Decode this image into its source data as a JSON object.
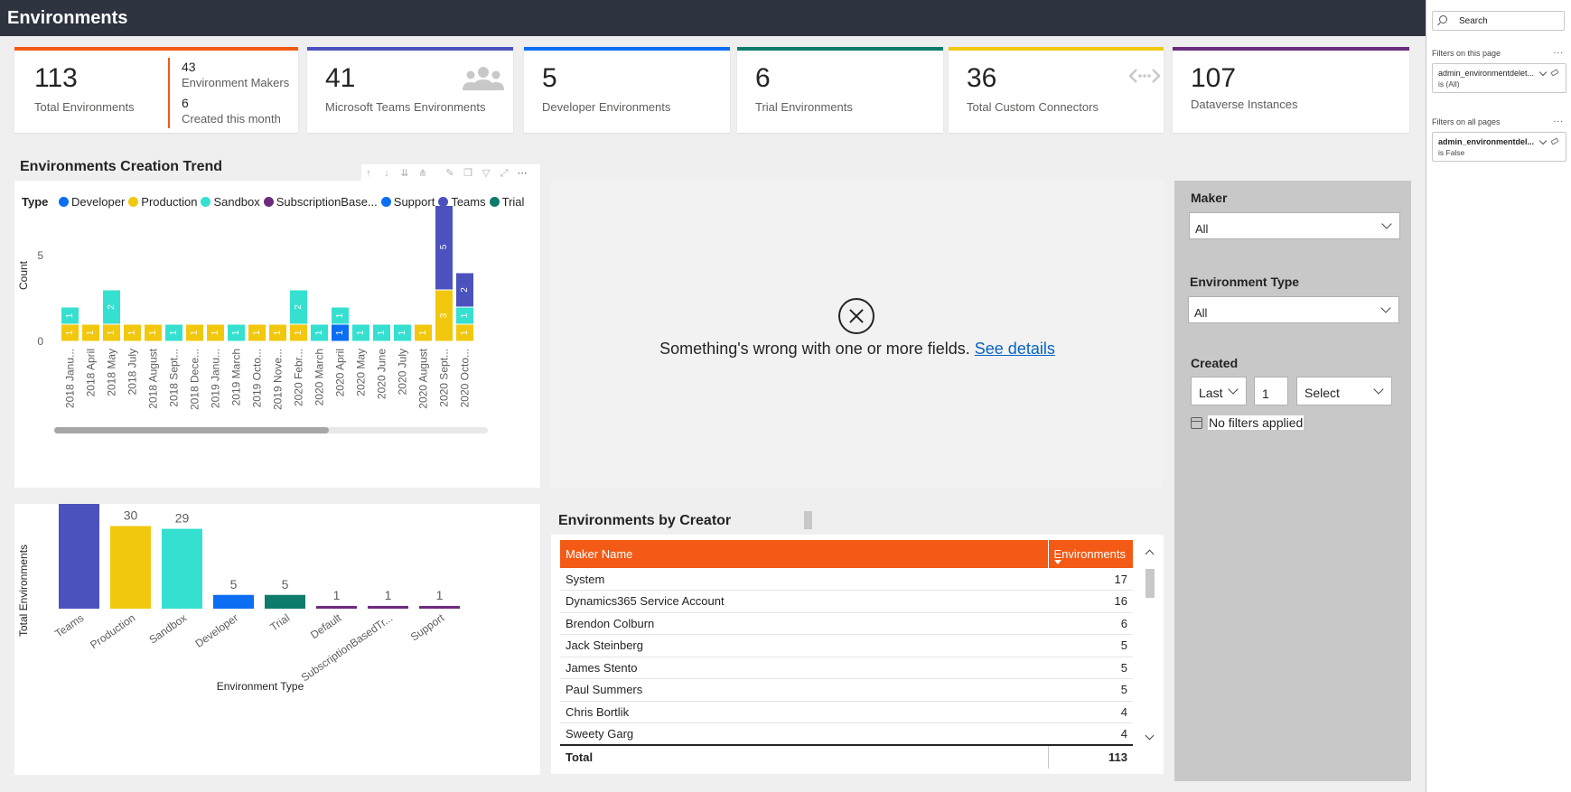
{
  "page": {
    "title": "Environments"
  },
  "filter_pane": {
    "search_label": "Search",
    "page_filters_heading": "Filters on this page",
    "all_pages_heading": "Filters on all pages",
    "more": "...",
    "page_filter": {
      "name": "admin_environmentdelet...",
      "value": "is (All)"
    },
    "all_filter": {
      "name": "admin_environmentdel...",
      "value": "is False"
    }
  },
  "kpis": {
    "total": {
      "value": "113",
      "label": "Total Environments",
      "color": "#f35a16"
    },
    "makers": {
      "value": "43",
      "label": "Environment Makers"
    },
    "created": {
      "value": "6",
      "label": "Created this month"
    },
    "teams": {
      "value": "41",
      "label": "Microsoft Teams Environments",
      "color": "#4c52bd"
    },
    "developer": {
      "value": "5",
      "label": "Developer Environments",
      "color": "#0c6ef2"
    },
    "trial": {
      "value": "6",
      "label": "Trial Environments",
      "color": "#0f7b6c"
    },
    "connectors": {
      "value": "36",
      "label": "Total Custom Connectors",
      "color": "#f2c80f"
    },
    "dataverse": {
      "value": "107",
      "label": "Dataverse Instances",
      "color": "#6c2c7e"
    }
  },
  "trend_chart": {
    "title": "Environments Creation Trend",
    "legend_title": "Type",
    "legend": [
      {
        "name": "Developer",
        "color": "#0c6ef2"
      },
      {
        "name": "Production",
        "color": "#f2c80f"
      },
      {
        "name": "Sandbox",
        "color": "#36e0d0"
      },
      {
        "name": "SubscriptionBase...",
        "color": "#6c2c7e"
      },
      {
        "name": "Support",
        "color": "#0c6ef2"
      },
      {
        "name": "Teams",
        "color": "#4c52bd"
      },
      {
        "name": "Trial",
        "color": "#0f7b6c"
      }
    ],
    "ylabel": "Count",
    "yticks": [
      "0",
      "5"
    ]
  },
  "error_visual": {
    "message": "Something's wrong with one or more fields.",
    "link": "See details"
  },
  "slicers": {
    "maker": {
      "label": "Maker",
      "value": "All"
    },
    "env_type": {
      "label": "Environment Type",
      "value": "All"
    },
    "created": {
      "label": "Created",
      "period": "Last",
      "count": "1",
      "unit": "Select",
      "status": "No filters applied"
    }
  },
  "creator_table": {
    "title": "Environments by Creator",
    "headers": {
      "maker": "Maker Name",
      "envs": "Environments"
    },
    "rows": [
      {
        "maker": "System",
        "envs": "17"
      },
      {
        "maker": "Dynamics365 Service Account",
        "envs": "16"
      },
      {
        "maker": "Brendon Colburn",
        "envs": "6"
      },
      {
        "maker": "Jack Steinberg",
        "envs": "5"
      },
      {
        "maker": "James Stento",
        "envs": "5"
      },
      {
        "maker": "Paul Summers",
        "envs": "5"
      },
      {
        "maker": "Chris Bortlik",
        "envs": "4"
      },
      {
        "maker": "Sweety Garg",
        "envs": "4"
      }
    ],
    "total_label": "Total",
    "total_value": "113"
  },
  "chart_data": [
    {
      "type": "bar",
      "stacked": true,
      "title": "Environments Creation Trend",
      "xlabel": "",
      "ylabel": "Count",
      "ylim": [
        0,
        8
      ],
      "categories": [
        "2018 Janu...",
        "2018 April",
        "2018 May",
        "2018 July",
        "2018 August",
        "2018 Sept...",
        "2018 Dece...",
        "2019 Janu...",
        "2019 March",
        "2019 Octo...",
        "2019 Nove...",
        "2020 Febr...",
        "2020 March",
        "2020 April",
        "2020 May",
        "2020 June",
        "2020 July",
        "2020 August",
        "2020 Sept...",
        "2020 Octo..."
      ],
      "series": [
        {
          "name": "Developer",
          "color": "#0c6ef2",
          "values": [
            0,
            0,
            0,
            0,
            0,
            0,
            0,
            0,
            0,
            0,
            0,
            0,
            0,
            1,
            0,
            0,
            0,
            0,
            0,
            0
          ]
        },
        {
          "name": "Production",
          "color": "#f2c80f",
          "values": [
            1,
            1,
            1,
            1,
            1,
            0,
            1,
            1,
            0,
            1,
            1,
            1,
            0,
            0,
            0,
            0,
            0,
            1,
            3,
            1
          ]
        },
        {
          "name": "Sandbox",
          "color": "#36e0d0",
          "values": [
            1,
            0,
            2,
            0,
            0,
            1,
            0,
            0,
            1,
            0,
            0,
            2,
            1,
            1,
            1,
            1,
            1,
            0,
            0,
            1
          ]
        },
        {
          "name": "Teams",
          "color": "#4c52bd",
          "values": [
            0,
            0,
            0,
            0,
            0,
            0,
            0,
            0,
            0,
            0,
            0,
            0,
            0,
            0,
            0,
            0,
            0,
            0,
            5,
            2
          ]
        }
      ]
    },
    {
      "type": "bar",
      "title": "",
      "xlabel": "Environment Type",
      "ylabel": "Total Environments",
      "ylim": [
        0,
        45
      ],
      "categories": [
        "Teams",
        "Production",
        "Sandbox",
        "Developer",
        "Trial",
        "Default",
        "SubscriptionBasedTr...",
        "Support"
      ],
      "values": [
        41,
        30,
        29,
        5,
        5,
        1,
        1,
        1
      ],
      "colors": [
        "#4c52bd",
        "#f2c80f",
        "#36e0d0",
        "#0c6ef2",
        "#0f7b6c",
        "#6c2c7e",
        "#6c2c7e",
        "#6c2c7e"
      ]
    }
  ]
}
